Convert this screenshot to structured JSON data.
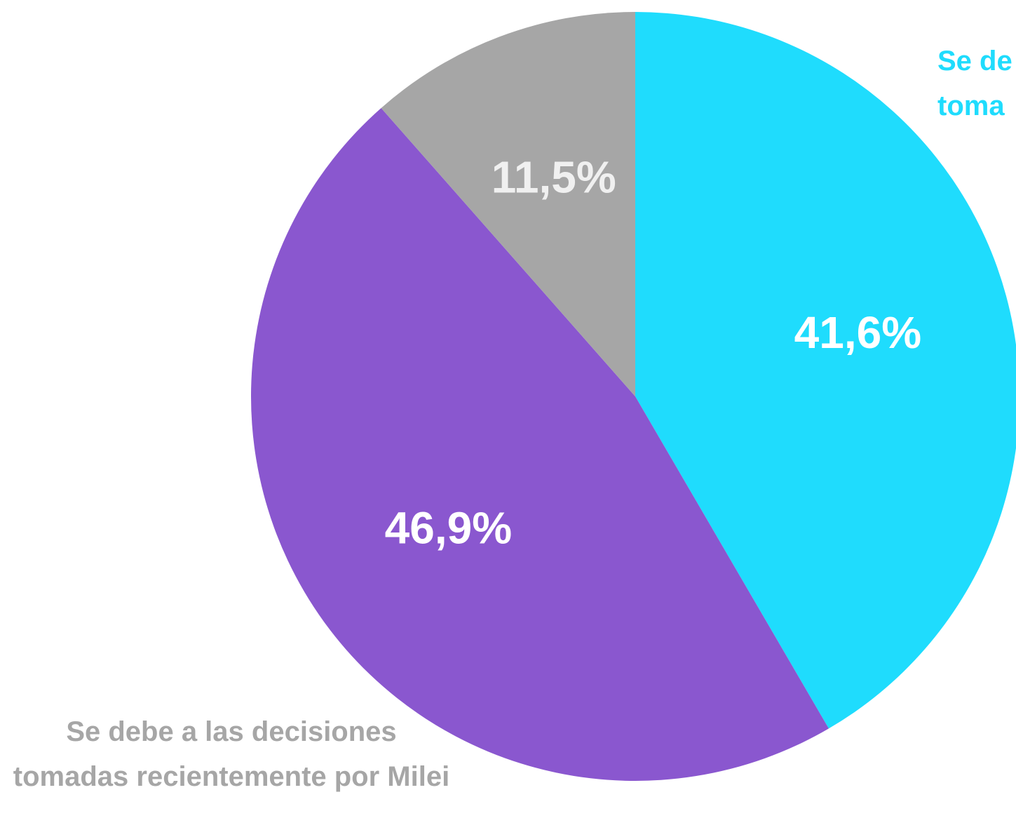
{
  "chart_data": {
    "type": "pie",
    "categories": [
      "Se de toma",
      null,
      "Se debe a las decisiones tomadas recientemente por Milei"
    ],
    "values": [
      41.6,
      46.9,
      11.5
    ],
    "value_labels": [
      "41,6%",
      "46,9%",
      "11,5%"
    ],
    "colors": [
      "#1fdcfd",
      "#8a57cf",
      "#a6a6a6"
    ]
  }
}
